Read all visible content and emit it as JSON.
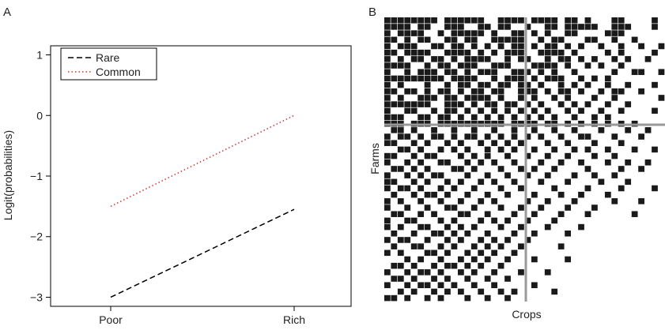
{
  "chart_data": [
    {
      "panel_label": "A",
      "type": "line",
      "categories": [
        "Poor",
        "Rich"
      ],
      "series": [
        {
          "name": "Rare",
          "values": [
            -3.0,
            -1.55
          ],
          "color": "#000000",
          "dash": "dashed"
        },
        {
          "name": "Common",
          "values": [
            -1.5,
            0.0
          ],
          "color": "#d62d20",
          "dash": "dotted"
        }
      ],
      "title": "",
      "xlabel": "",
      "ylabel": "Logit(probabilities)",
      "ylim": [
        -3.15,
        1.15
      ],
      "yticks": [
        -3,
        -2,
        -1,
        0,
        1
      ],
      "ytick_labels": [
        "−3",
        "−2",
        "−1",
        "0",
        "1"
      ],
      "grid": false,
      "legend_position": "top-left"
    },
    {
      "panel_label": "B",
      "type": "heatmap",
      "title": "",
      "xlabel": "Crops",
      "ylabel": "Farms",
      "n_cols": 42,
      "n_rows": 44,
      "cell_colors": {
        "on": "#1a1a1a",
        "off": "#ffffff"
      },
      "divider_color": "#999999",
      "divider_after_col": 21,
      "divider_after_row": 16,
      "filled_cells_rows": [
        [
          0,
          1,
          2,
          3,
          4,
          5,
          6,
          7,
          9,
          10,
          11,
          12,
          13,
          14,
          17,
          18,
          19,
          20,
          22,
          23,
          24,
          25,
          27,
          28,
          30,
          34,
          35,
          40
        ],
        [
          0,
          1,
          2,
          3,
          5,
          6,
          9,
          10,
          11,
          14,
          15,
          17,
          18,
          21,
          24,
          25,
          27,
          28,
          29,
          30,
          31,
          34,
          35,
          36,
          40
        ],
        [
          0,
          2,
          3,
          4,
          5,
          8,
          10,
          11,
          12,
          13,
          14,
          16,
          19,
          20,
          22,
          24,
          27,
          28,
          33,
          34,
          35
        ],
        [
          0,
          1,
          3,
          5,
          6,
          9,
          10,
          12,
          13,
          16,
          17,
          18,
          19,
          20,
          23,
          25,
          26,
          30,
          31,
          34,
          37
        ],
        [
          0,
          2,
          3,
          4,
          7,
          8,
          10,
          11,
          13,
          15,
          17,
          19,
          20,
          22,
          24,
          25,
          27,
          29,
          32,
          35,
          38,
          41
        ],
        [
          0,
          1,
          3,
          4,
          5,
          6,
          9,
          10,
          11,
          12,
          14,
          16,
          18,
          19,
          20,
          23,
          24,
          25,
          26,
          28,
          33,
          35,
          40
        ],
        [
          0,
          2,
          4,
          5,
          7,
          8,
          10,
          12,
          13,
          14,
          15,
          18,
          20,
          21,
          24,
          26,
          27,
          29,
          31,
          34,
          36,
          39
        ],
        [
          0,
          1,
          2,
          3,
          6,
          8,
          9,
          11,
          12,
          13,
          16,
          17,
          18,
          22,
          23,
          24,
          25,
          27,
          30,
          32,
          35
        ],
        [
          0,
          3,
          5,
          6,
          7,
          9,
          10,
          12,
          14,
          15,
          16,
          19,
          20,
          21,
          23,
          25,
          28,
          34,
          37,
          38,
          41
        ],
        [
          0,
          1,
          2,
          3,
          4,
          5,
          6,
          7,
          8,
          10,
          11,
          12,
          13,
          16,
          18,
          19,
          20,
          22,
          24,
          25,
          26,
          29,
          31,
          33
        ],
        [
          0,
          2,
          6,
          9,
          11,
          12,
          14,
          15,
          17,
          18,
          20,
          21,
          23,
          26,
          28,
          30,
          33,
          36,
          40
        ],
        [
          0,
          1,
          3,
          4,
          6,
          8,
          9,
          11,
          13,
          14,
          16,
          17,
          20,
          21,
          22,
          24,
          26,
          27,
          29,
          32,
          34,
          35,
          38
        ],
        [
          0,
          2,
          5,
          6,
          7,
          9,
          10,
          12,
          13,
          14,
          15,
          17,
          20,
          22,
          25,
          27,
          31,
          34,
          41
        ],
        [
          0,
          1,
          2,
          3,
          4,
          5,
          6,
          9,
          10,
          11,
          13,
          15,
          16,
          18,
          19,
          21,
          23,
          26,
          28,
          30,
          33,
          36
        ],
        [
          0,
          3,
          4,
          7,
          9,
          10,
          12,
          14,
          16,
          18,
          20,
          22,
          24,
          27,
          29,
          32,
          35,
          40
        ],
        [
          0,
          1,
          2,
          5,
          6,
          8,
          9,
          11,
          13,
          15,
          17,
          19,
          21,
          23,
          25,
          28,
          31,
          33
        ],
        [
          0,
          1,
          2,
          4,
          5,
          6,
          8,
          9,
          10,
          11,
          12,
          13,
          14,
          15,
          16,
          17,
          19,
          20,
          21,
          22,
          24,
          25,
          27,
          29,
          31,
          33,
          35,
          37
        ],
        [
          1,
          2,
          4,
          7,
          10,
          13,
          16,
          19,
          22,
          25,
          28,
          32,
          36,
          39
        ],
        [
          0,
          2,
          3,
          5,
          7,
          8,
          10,
          12,
          13,
          15,
          17,
          19,
          21,
          23,
          26,
          29,
          30,
          34,
          38
        ],
        [
          0,
          1,
          4,
          6,
          9,
          11,
          14,
          16,
          18,
          20,
          24,
          27,
          31,
          35
        ],
        [
          2,
          3,
          5,
          8,
          10,
          12,
          15,
          17,
          19,
          22,
          25,
          28,
          30,
          33,
          37,
          40
        ],
        [
          0,
          1,
          4,
          6,
          7,
          11,
          13,
          15,
          18,
          21,
          24,
          27,
          31,
          34
        ],
        [
          0,
          3,
          5,
          8,
          9,
          12,
          14,
          16,
          19,
          23,
          26,
          29,
          33,
          36,
          39
        ],
        [
          1,
          2,
          4,
          6,
          10,
          11,
          13,
          17,
          20,
          22,
          25,
          30,
          35,
          38
        ],
        [
          0,
          3,
          5,
          7,
          8,
          12,
          15,
          18,
          21,
          24,
          28,
          31,
          34
        ],
        [
          0,
          1,
          4,
          6,
          9,
          11,
          14,
          16,
          19,
          23,
          27,
          32,
          36
        ],
        [
          0,
          2,
          3,
          5,
          8,
          10,
          13,
          17,
          20,
          25,
          30,
          35,
          40
        ],
        [
          1,
          4,
          6,
          7,
          9,
          12,
          15,
          18,
          22,
          26,
          29,
          33
        ],
        [
          0,
          2,
          5,
          8,
          11,
          14,
          16,
          21,
          24,
          28,
          34,
          38
        ],
        [
          0,
          3,
          6,
          9,
          10,
          13,
          17,
          20,
          23,
          27,
          31
        ],
        [
          1,
          2,
          5,
          7,
          11,
          12,
          15,
          19,
          22,
          26,
          30,
          37
        ],
        [
          0,
          3,
          4,
          8,
          10,
          14,
          16,
          18,
          21,
          25
        ],
        [
          0,
          2,
          5,
          6,
          9,
          11,
          13,
          17,
          20,
          24,
          29
        ],
        [
          1,
          4,
          7,
          8,
          10,
          12,
          15,
          19,
          22,
          27
        ],
        [
          0,
          2,
          3,
          6,
          9,
          11,
          14,
          16,
          18,
          21
        ],
        [
          1,
          4,
          5,
          8,
          10,
          13,
          15,
          17,
          20,
          26
        ],
        [
          0,
          2,
          6,
          7,
          9,
          12,
          14,
          16,
          19
        ],
        [
          3,
          5,
          8,
          11,
          13,
          15,
          18,
          22,
          27
        ],
        [
          1,
          2,
          4,
          7,
          9,
          10,
          12,
          14,
          17
        ],
        [
          0,
          3,
          5,
          6,
          8,
          11,
          13,
          16,
          20,
          24
        ],
        [
          1,
          2,
          4,
          7,
          9,
          12,
          15,
          18
        ],
        [
          0,
          3,
          5,
          6,
          8,
          10,
          13,
          16,
          22
        ],
        [
          2,
          4,
          7,
          9,
          11,
          14,
          17,
          19,
          25
        ],
        [
          0,
          1,
          3,
          6,
          8,
          12,
          15,
          18
        ]
      ]
    }
  ]
}
